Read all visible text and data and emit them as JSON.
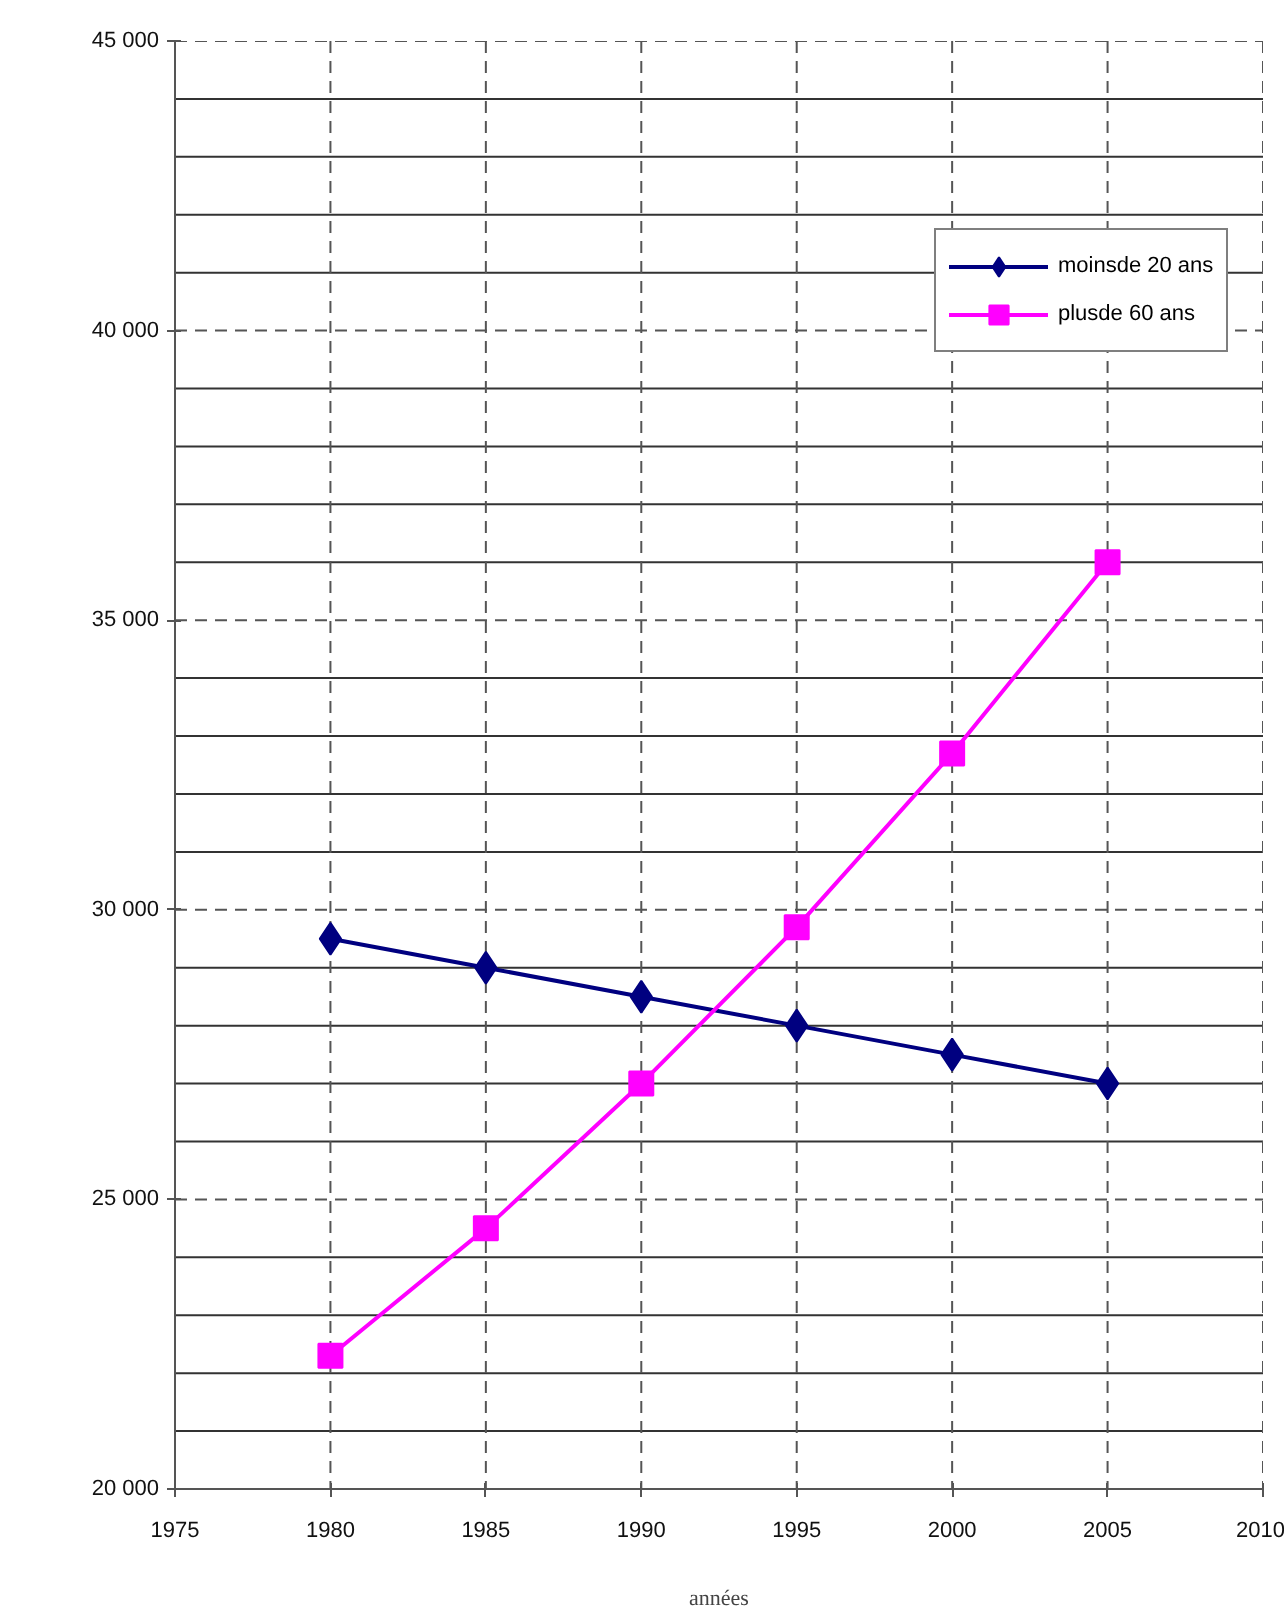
{
  "chart_data": {
    "type": "line",
    "xlabel": "années",
    "x": [
      1980,
      1985,
      1990,
      1995,
      2000,
      2005
    ],
    "series": [
      {
        "name": "moinsde 20 ans",
        "color": "#000080",
        "marker": "diamond",
        "values": [
          29500,
          29000,
          28500,
          28000,
          27500,
          27000
        ]
      },
      {
        "name": "plusde 60 ans",
        "color": "#ff00ff",
        "marker": "square",
        "values": [
          22300,
          24500,
          27000,
          29700,
          32700,
          36000
        ]
      }
    ],
    "xlim": [
      1975,
      2010
    ],
    "xticks": [
      1975,
      1980,
      1985,
      1990,
      1995,
      2000,
      2005,
      2010
    ],
    "ylim": [
      20000,
      45000
    ],
    "yticks": [
      {
        "value": 20000,
        "label": "20 000"
      },
      {
        "value": 21000,
        "label": null
      },
      {
        "value": 22000,
        "label": null
      },
      {
        "value": 23000,
        "label": null
      },
      {
        "value": 24000,
        "label": null
      },
      {
        "value": 25000,
        "label": "25 000"
      },
      {
        "value": 26000,
        "label": null
      },
      {
        "value": 27000,
        "label": null
      },
      {
        "value": 28000,
        "label": null
      },
      {
        "value": 29000,
        "label": null
      },
      {
        "value": 30000,
        "label": "30 000"
      },
      {
        "value": 31000,
        "label": null
      },
      {
        "value": 32000,
        "label": null
      },
      {
        "value": 33000,
        "label": null
      },
      {
        "value": 34000,
        "label": null
      },
      {
        "value": 35000,
        "label": "35 000"
      },
      {
        "value": 36000,
        "label": null
      },
      {
        "value": 37000,
        "label": null
      },
      {
        "value": 38000,
        "label": null
      },
      {
        "value": 39000,
        "label": null
      },
      {
        "value": 40000,
        "label": "40 000"
      },
      {
        "value": 41000,
        "label": null
      },
      {
        "value": 42000,
        "label": null
      },
      {
        "value": 43000,
        "label": null
      },
      {
        "value": 44000,
        "label": null
      },
      {
        "value": 45000,
        "label": "45 000"
      }
    ],
    "grid": true,
    "legend": "top right",
    "line_style": "solid"
  }
}
